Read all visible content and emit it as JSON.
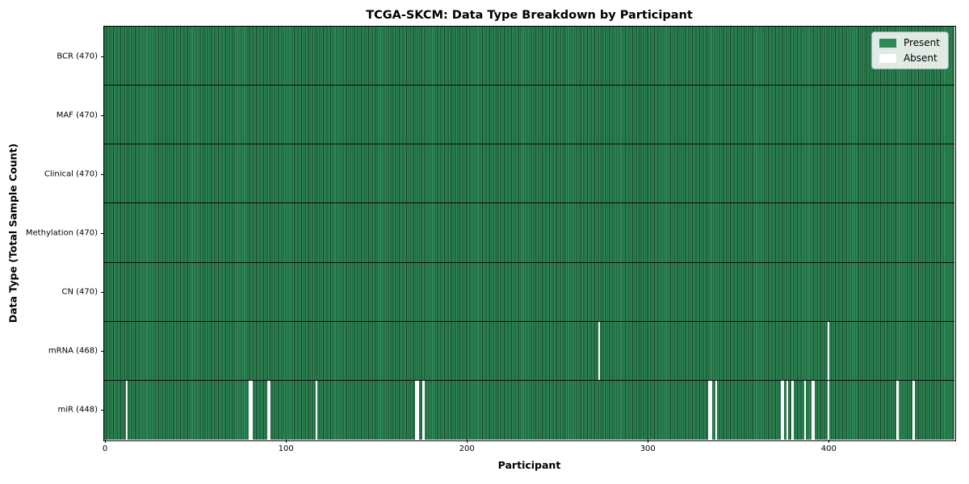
{
  "title": "TCGA-SKCM: Data Type Breakdown by Participant",
  "x_axis": {
    "label": "Participant",
    "ticks": [
      0,
      100,
      200,
      300,
      400
    ]
  },
  "y_axis": {
    "label": "Data Type (Total Sample Count)"
  },
  "legend": {
    "present": "Present",
    "absent": "Absent"
  },
  "colors": {
    "present": "#2e8b57",
    "present_stripe_dark": "#17402a",
    "absent": "#ffffff",
    "row_divider": "#0b0b0b",
    "legend_bg": "rgba(255,255,255,0.85)",
    "legend_border": "#a6a6a6"
  },
  "chart_data": {
    "type": "heatmap",
    "title": "TCGA-SKCM: Data Type Breakdown by Participant",
    "xlabel": "Participant",
    "ylabel": "Data Type (Total Sample Count)",
    "x_ticks": [
      0,
      100,
      200,
      300,
      400
    ],
    "x_range": [
      0,
      470
    ],
    "n_participants": 470,
    "legend_entries": [
      "Present",
      "Absent"
    ],
    "grid": false,
    "legend_position": "upper right",
    "rows": [
      {
        "data_type": "BCR",
        "label": "BCR (470)",
        "present_count": 470,
        "total": 470,
        "absent_participants": []
      },
      {
        "data_type": "MAF",
        "label": "MAF (470)",
        "present_count": 470,
        "total": 470,
        "absent_participants": []
      },
      {
        "data_type": "Clinical",
        "label": "Clinical (470)",
        "present_count": 470,
        "total": 470,
        "absent_participants": []
      },
      {
        "data_type": "Methylation",
        "label": "Methylation (470)",
        "present_count": 470,
        "total": 470,
        "absent_participants": []
      },
      {
        "data_type": "CN",
        "label": "CN (470)",
        "present_count": 470,
        "total": 470,
        "absent_participants": []
      },
      {
        "data_type": "mRNA",
        "label": "mRNA (468)",
        "present_count": 468,
        "total": 470,
        "absent_participants": [
          273,
          400
        ]
      },
      {
        "data_type": "miR",
        "label": "miR (448)",
        "present_count": 448,
        "total": 470,
        "absent_participants": [
          12,
          80,
          81,
          90,
          91,
          117,
          172,
          173,
          176,
          334,
          335,
          338,
          374,
          375,
          377,
          380,
          387,
          391,
          392,
          400,
          438,
          447
        ]
      }
    ]
  }
}
